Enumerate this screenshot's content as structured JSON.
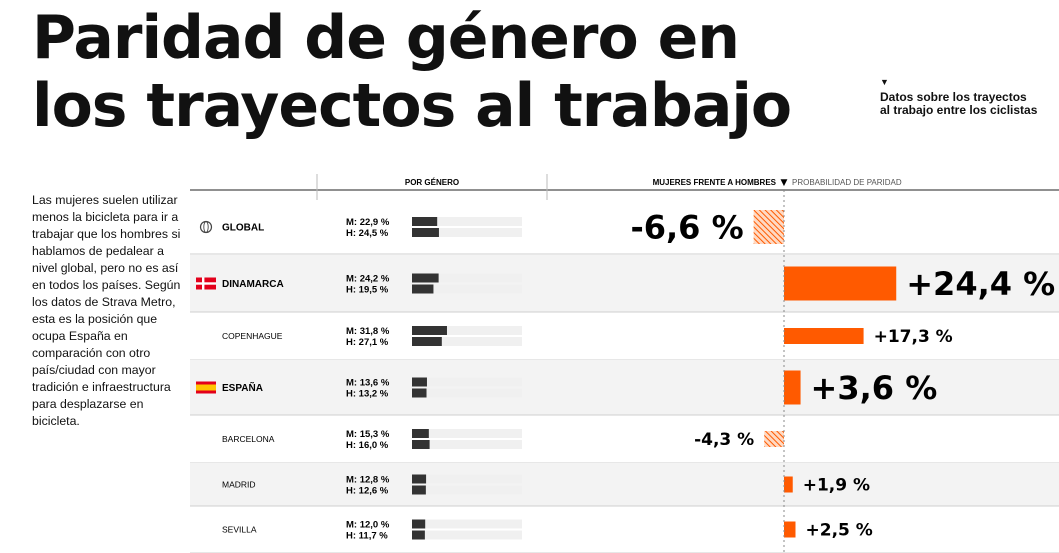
{
  "title_lines": [
    "Paridad de género en",
    "los trayectos al trabajo"
  ],
  "aside": "Datos sobre los trayectos al trabajo entre los ciclistas",
  "intro": "Las mujeres suelen utilizar menos la bicicleta para ir a trabajar que los hombres si hablamos de pedalear a nivel global, pero no es así en todos los países. Según los datos de Strava Metro, esta es la posición que ocupa España en comparación con otro país/ciudad con mayor tradición e infraestructura para desplazarse en bicicleta.",
  "headers": {
    "by_gender": "POR GÉNERO",
    "women_vs_men": "MUJERES FRENTE A HOMBRES",
    "parity": "PROBABILIDAD DE PARIDAD"
  },
  "colors": {
    "accent": "#ff5a00",
    "bar_dark": "#333333",
    "track": "#f0f0f0",
    "row_alt": "#f3f3f3"
  },
  "chart_data": {
    "type": "bar",
    "categories": [
      "GLOBAL",
      "DINAMARCA",
      "COPENHAGUE",
      "ESPAÑA",
      "BARCELONA",
      "MADRID",
      "SEVILLA"
    ],
    "rows": [
      {
        "label": "GLOBAL",
        "level": "country",
        "icon": "globe-icon",
        "m_label": "M: 22,9 %",
        "h_label": "H: 24,5 %",
        "m": 22.9,
        "h": 24.5,
        "diff": -6.6,
        "diff_label": "-6,6 %",
        "size": "large"
      },
      {
        "label": "DINAMARCA",
        "level": "country",
        "icon": "flag-denmark-icon",
        "m_label": "M: 24,2 %",
        "h_label": "H: 19,5 %",
        "m": 24.2,
        "h": 19.5,
        "diff": 24.4,
        "diff_label": "+24,4 %",
        "size": "large"
      },
      {
        "label": "COPENHAGUE",
        "level": "city",
        "m_label": "M: 31,8 %",
        "h_label": "H: 27,1 %",
        "m": 31.8,
        "h": 27.1,
        "diff": 17.3,
        "diff_label": "+17,3 %",
        "size": "small"
      },
      {
        "label": "ESPAÑA",
        "level": "country",
        "icon": "flag-spain-icon",
        "m_label": "M: 13,6 %",
        "h_label": "H: 13,2 %",
        "m": 13.6,
        "h": 13.2,
        "diff": 3.6,
        "diff_label": "+3,6 %",
        "size": "large"
      },
      {
        "label": "BARCELONA",
        "level": "city",
        "m_label": "M: 15,3 %",
        "h_label": "H: 16,0 %",
        "m": 15.3,
        "h": 16.0,
        "diff": -4.3,
        "diff_label": "-4,3 %",
        "size": "small"
      },
      {
        "label": "MADRID",
        "level": "city",
        "m_label": "M: 12,8 %",
        "h_label": "H: 12,6 %",
        "m": 12.8,
        "h": 12.6,
        "diff": 1.9,
        "diff_label": "+1,9 %",
        "size": "small"
      },
      {
        "label": "SEVILLA",
        "level": "city",
        "m_label": "M: 12,0 %",
        "h_label": "H: 11,7 %",
        "m": 12.0,
        "h": 11.7,
        "diff": 2.5,
        "diff_label": "+2,5 %",
        "size": "small"
      }
    ]
  }
}
